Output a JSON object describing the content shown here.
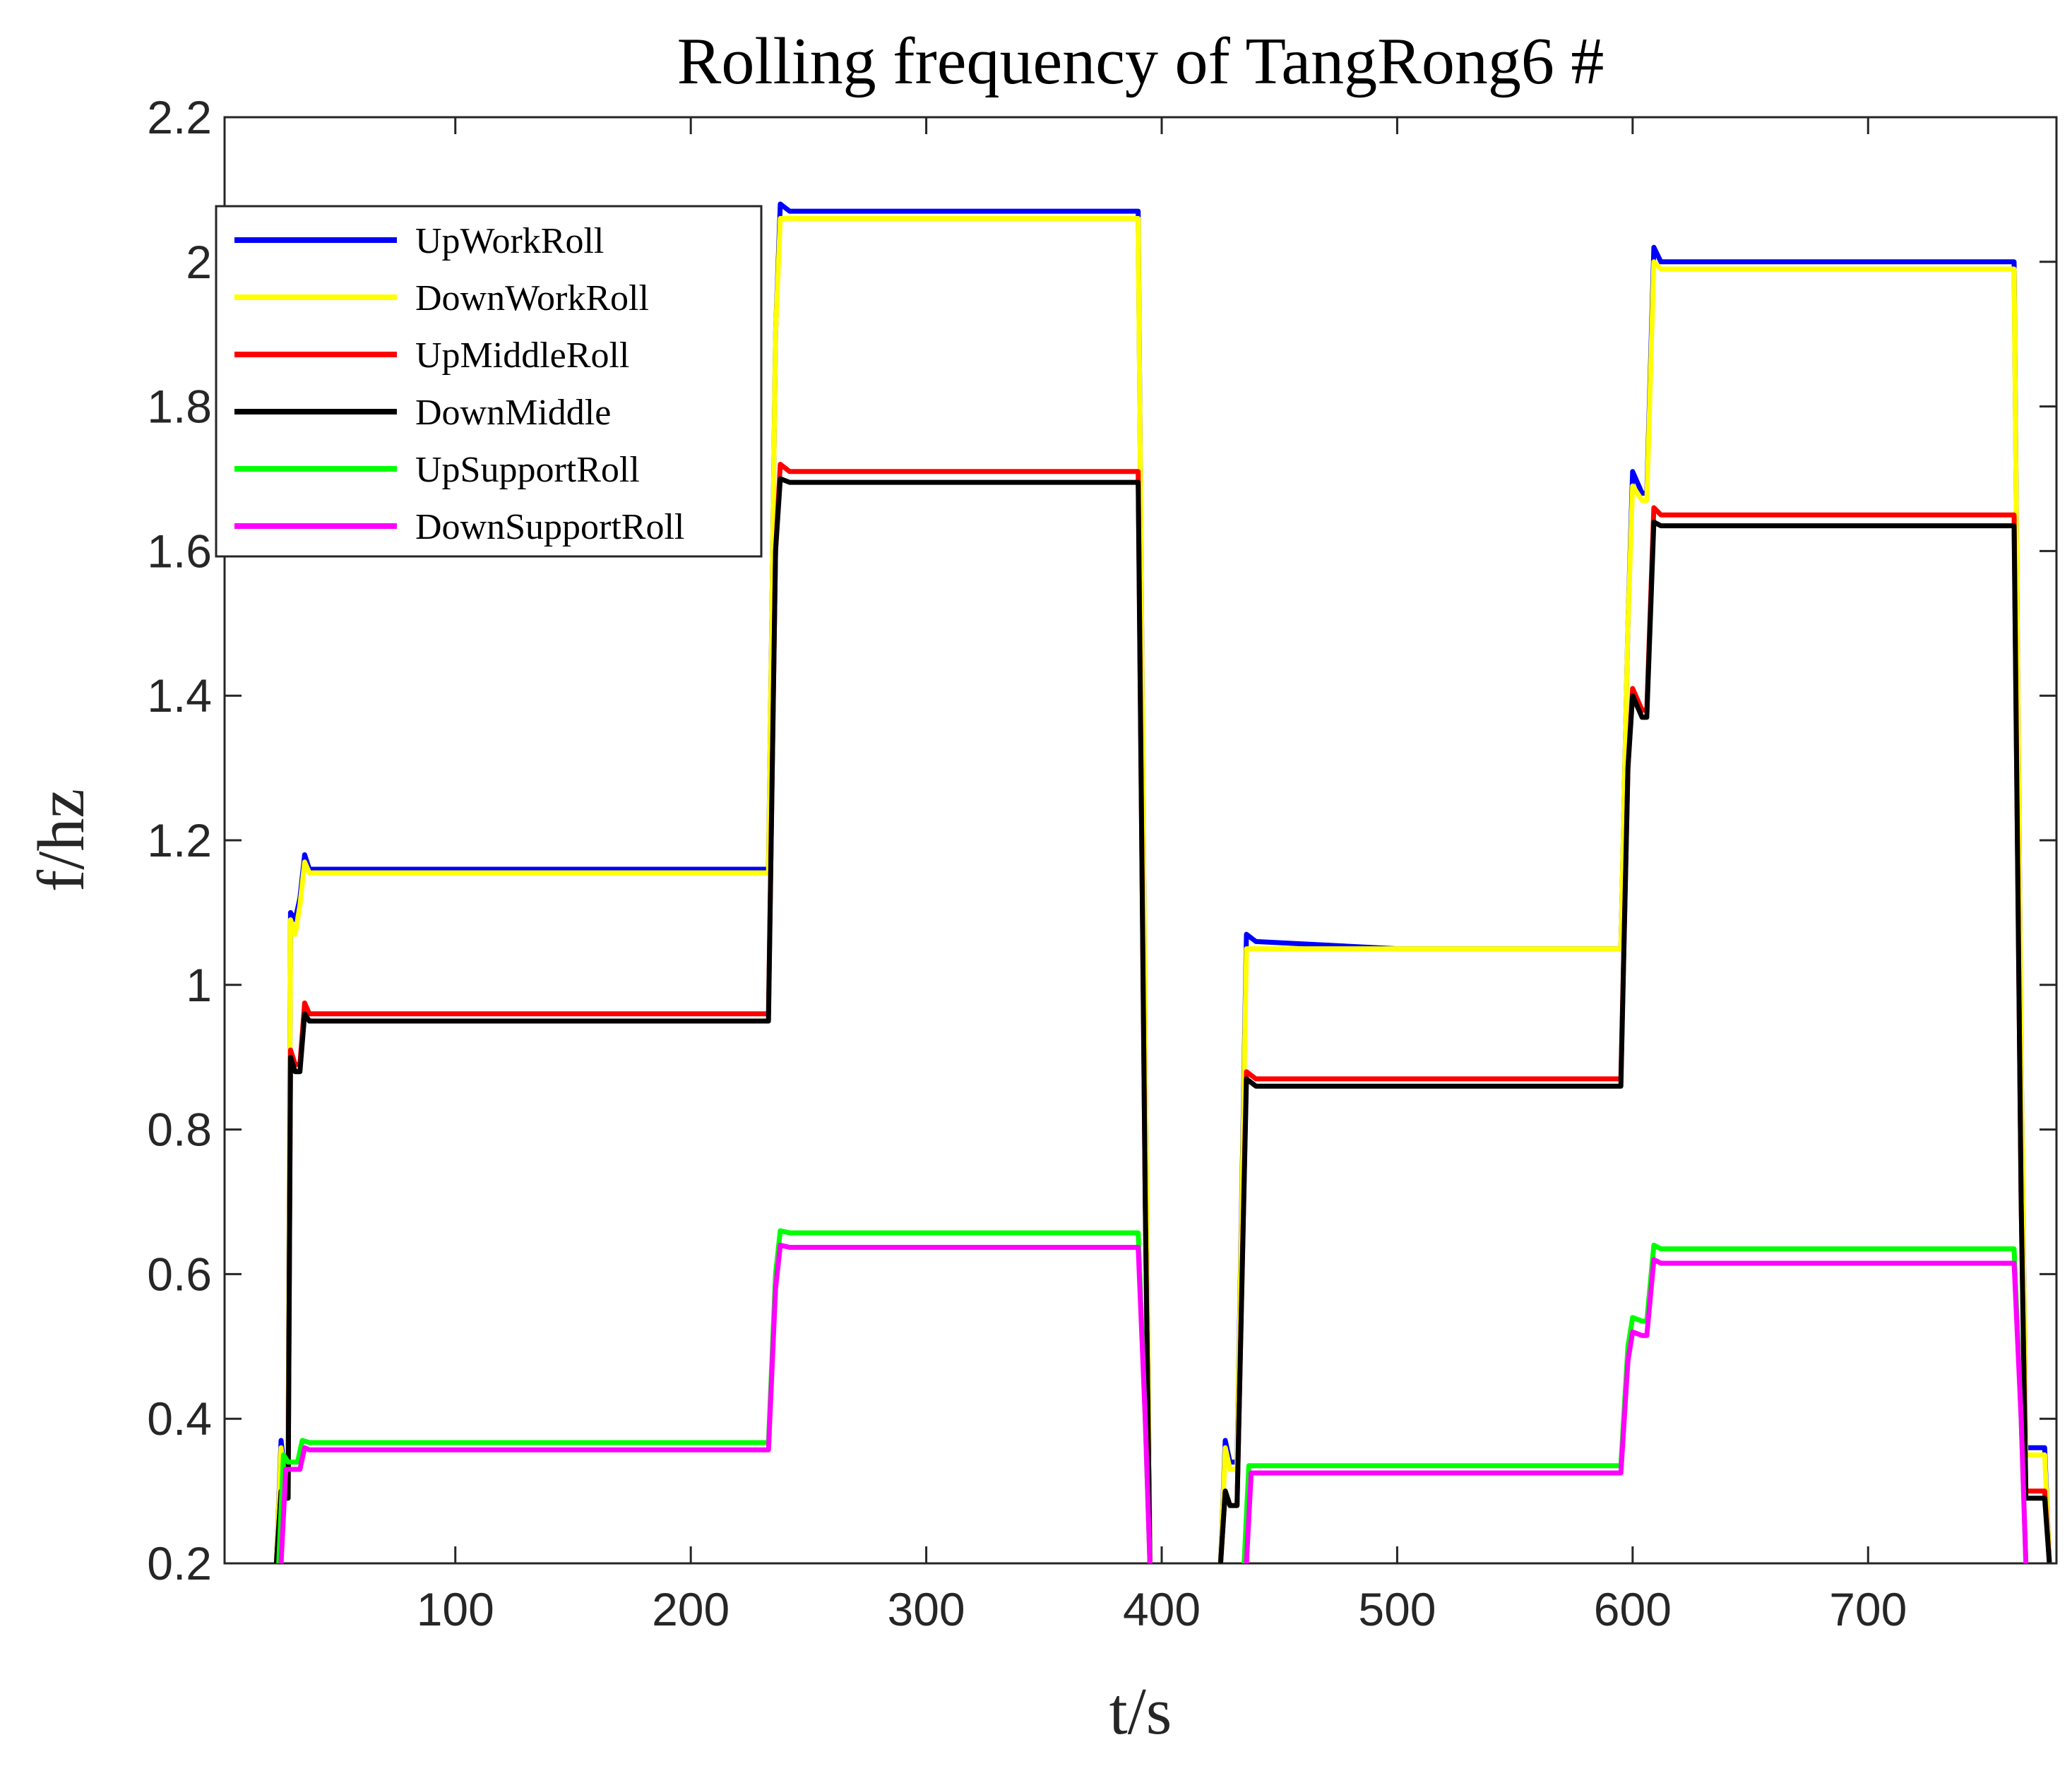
{
  "chart_data": {
    "type": "line",
    "title": "Rolling frequency of TangRong6 #",
    "xlabel": "t/s",
    "ylabel": "f/hz",
    "xlim": [
      2,
      780
    ],
    "ylim": [
      0.2,
      2.2
    ],
    "xticks": [
      100,
      200,
      300,
      400,
      500,
      600,
      700
    ],
    "xtick_labels": [
      "100",
      "200",
      "300",
      "400",
      "500",
      "600",
      "700"
    ],
    "yticks": [
      0.2,
      0.4,
      0.6,
      0.8,
      1.0,
      1.2,
      1.4,
      1.6,
      1.8,
      2.0,
      2.2
    ],
    "ytick_labels": [
      "0.2",
      "0.4",
      "0.6",
      "0.8",
      "1",
      "1.2",
      "1.4",
      "1.6",
      "1.8",
      "2",
      "2.2"
    ],
    "grid": false,
    "legend_position": "top-left",
    "series": [
      {
        "name": "UpWorkRoll",
        "color": "#0000ff",
        "points": [
          [
            24,
            0.2
          ],
          [
            26,
            0.37
          ],
          [
            27,
            0.34
          ],
          [
            28,
            0.34
          ],
          [
            29,
            0.34
          ],
          [
            30,
            1.1
          ],
          [
            32,
            1.09
          ],
          [
            34,
            1.12
          ],
          [
            36,
            1.18
          ],
          [
            38,
            1.16
          ],
          [
            100,
            1.16
          ],
          [
            200,
            1.16
          ],
          [
            233,
            1.16
          ],
          [
            236,
            1.9
          ],
          [
            238,
            2.08
          ],
          [
            242,
            2.07
          ],
          [
            300,
            2.07
          ],
          [
            390,
            2.07
          ],
          [
            393,
            0.9
          ],
          [
            395,
            0.2
          ],
          [
            null,
            null
          ],
          [
            425,
            0.2
          ],
          [
            427,
            0.37
          ],
          [
            429,
            0.34
          ],
          [
            432,
            0.34
          ],
          [
            436,
            1.07
          ],
          [
            440,
            1.06
          ],
          [
            500,
            1.05
          ],
          [
            595,
            1.05
          ],
          [
            598,
            1.5
          ],
          [
            600,
            1.71
          ],
          [
            604,
            1.68
          ],
          [
            606,
            1.68
          ],
          [
            609,
            2.02
          ],
          [
            612,
            2.0
          ],
          [
            700,
            2.0
          ],
          [
            762,
            2.0
          ],
          [
            765,
            0.9
          ],
          [
            767,
            0.36
          ],
          [
            772,
            0.36
          ],
          [
            775,
            0.36
          ],
          [
            777,
            0.2
          ]
        ]
      },
      {
        "name": "DownWorkRoll",
        "color": "#ffff00",
        "points": [
          [
            24,
            0.2
          ],
          [
            26,
            0.36
          ],
          [
            27,
            0.33
          ],
          [
            28,
            0.33
          ],
          [
            29,
            0.33
          ],
          [
            30,
            1.09
          ],
          [
            32,
            1.07
          ],
          [
            34,
            1.11
          ],
          [
            36,
            1.17
          ],
          [
            38,
            1.155
          ],
          [
            100,
            1.155
          ],
          [
            200,
            1.155
          ],
          [
            233,
            1.155
          ],
          [
            236,
            1.9
          ],
          [
            238,
            2.06
          ],
          [
            242,
            2.06
          ],
          [
            300,
            2.06
          ],
          [
            390,
            2.06
          ],
          [
            393,
            0.9
          ],
          [
            395,
            0.2
          ],
          [
            null,
            null
          ],
          [
            425,
            0.2
          ],
          [
            427,
            0.36
          ],
          [
            429,
            0.33
          ],
          [
            432,
            0.33
          ],
          [
            436,
            1.05
          ],
          [
            440,
            1.05
          ],
          [
            500,
            1.05
          ],
          [
            595,
            1.05
          ],
          [
            598,
            1.5
          ],
          [
            600,
            1.69
          ],
          [
            604,
            1.67
          ],
          [
            606,
            1.67
          ],
          [
            609,
            2.0
          ],
          [
            612,
            1.99
          ],
          [
            700,
            1.99
          ],
          [
            762,
            1.99
          ],
          [
            765,
            0.9
          ],
          [
            767,
            0.35
          ],
          [
            772,
            0.35
          ],
          [
            775,
            0.35
          ],
          [
            777,
            0.2
          ]
        ]
      },
      {
        "name": "UpMiddleRoll",
        "color": "#ff0000",
        "points": [
          [
            24,
            0.2
          ],
          [
            26,
            0.3
          ],
          [
            27,
            0.3
          ],
          [
            28,
            0.3
          ],
          [
            29,
            0.3
          ],
          [
            30,
            0.91
          ],
          [
            32,
            0.89
          ],
          [
            34,
            0.89
          ],
          [
            36,
            0.975
          ],
          [
            38,
            0.96
          ],
          [
            100,
            0.96
          ],
          [
            200,
            0.96
          ],
          [
            233,
            0.96
          ],
          [
            236,
            1.6
          ],
          [
            238,
            1.72
          ],
          [
            242,
            1.71
          ],
          [
            300,
            1.71
          ],
          [
            390,
            1.71
          ],
          [
            393,
            0.7
          ],
          [
            395,
            0.2
          ],
          [
            null,
            null
          ],
          [
            425,
            0.2
          ],
          [
            427,
            0.3
          ],
          [
            429,
            0.28
          ],
          [
            432,
            0.28
          ],
          [
            436,
            0.88
          ],
          [
            440,
            0.87
          ],
          [
            500,
            0.87
          ],
          [
            595,
            0.87
          ],
          [
            598,
            1.3
          ],
          [
            600,
            1.41
          ],
          [
            604,
            1.38
          ],
          [
            606,
            1.38
          ],
          [
            609,
            1.66
          ],
          [
            612,
            1.65
          ],
          [
            700,
            1.65
          ],
          [
            762,
            1.65
          ],
          [
            765,
            0.7
          ],
          [
            767,
            0.3
          ],
          [
            772,
            0.3
          ],
          [
            775,
            0.3
          ],
          [
            777,
            0.2
          ]
        ]
      },
      {
        "name": "DownMiddle",
        "color": "#000000",
        "points": [
          [
            24,
            0.2
          ],
          [
            26,
            0.3
          ],
          [
            27,
            0.29
          ],
          [
            28,
            0.29
          ],
          [
            29,
            0.29
          ],
          [
            30,
            0.9
          ],
          [
            32,
            0.88
          ],
          [
            34,
            0.88
          ],
          [
            36,
            0.96
          ],
          [
            38,
            0.95
          ],
          [
            100,
            0.95
          ],
          [
            200,
            0.95
          ],
          [
            233,
            0.95
          ],
          [
            236,
            1.6
          ],
          [
            238,
            1.7
          ],
          [
            242,
            1.695
          ],
          [
            300,
            1.695
          ],
          [
            390,
            1.695
          ],
          [
            393,
            0.7
          ],
          [
            395,
            0.2
          ],
          [
            null,
            null
          ],
          [
            425,
            0.2
          ],
          [
            427,
            0.3
          ],
          [
            429,
            0.28
          ],
          [
            432,
            0.28
          ],
          [
            436,
            0.87
          ],
          [
            440,
            0.86
          ],
          [
            500,
            0.86
          ],
          [
            595,
            0.86
          ],
          [
            598,
            1.3
          ],
          [
            600,
            1.4
          ],
          [
            604,
            1.37
          ],
          [
            606,
            1.37
          ],
          [
            609,
            1.64
          ],
          [
            612,
            1.635
          ],
          [
            700,
            1.635
          ],
          [
            762,
            1.635
          ],
          [
            765,
            0.7
          ],
          [
            767,
            0.29
          ],
          [
            772,
            0.29
          ],
          [
            775,
            0.29
          ],
          [
            777,
            0.2
          ]
        ]
      },
      {
        "name": "UpSupportRoll",
        "color": "#00ff00",
        "points": [
          [
            25,
            0.2
          ],
          [
            27,
            0.35
          ],
          [
            29,
            0.34
          ],
          [
            31,
            0.34
          ],
          [
            33,
            0.34
          ],
          [
            35,
            0.37
          ],
          [
            38,
            0.367
          ],
          [
            100,
            0.367
          ],
          [
            200,
            0.367
          ],
          [
            233,
            0.367
          ],
          [
            236,
            0.6
          ],
          [
            238,
            0.66
          ],
          [
            242,
            0.657
          ],
          [
            300,
            0.657
          ],
          [
            390,
            0.657
          ],
          [
            393,
            0.4
          ],
          [
            395,
            0.2
          ],
          [
            null,
            null
          ],
          [
            435,
            0.2
          ],
          [
            437,
            0.335
          ],
          [
            500,
            0.335
          ],
          [
            595,
            0.335
          ],
          [
            598,
            0.5
          ],
          [
            600,
            0.54
          ],
          [
            604,
            0.535
          ],
          [
            606,
            0.535
          ],
          [
            609,
            0.64
          ],
          [
            612,
            0.635
          ],
          [
            700,
            0.635
          ],
          [
            762,
            0.635
          ],
          [
            765,
            0.4
          ],
          [
            767,
            0.2
          ]
        ]
      },
      {
        "name": "DownSupportRoll",
        "color": "#ff00ff",
        "points": [
          [
            26,
            0.2
          ],
          [
            28,
            0.33
          ],
          [
            30,
            0.33
          ],
          [
            32,
            0.33
          ],
          [
            34,
            0.33
          ],
          [
            36,
            0.36
          ],
          [
            38,
            0.357
          ],
          [
            100,
            0.357
          ],
          [
            200,
            0.357
          ],
          [
            233,
            0.357
          ],
          [
            236,
            0.58
          ],
          [
            238,
            0.64
          ],
          [
            242,
            0.637
          ],
          [
            300,
            0.637
          ],
          [
            390,
            0.637
          ],
          [
            393,
            0.4
          ],
          [
            395,
            0.2
          ],
          [
            null,
            null
          ],
          [
            436,
            0.2
          ],
          [
            438,
            0.325
          ],
          [
            500,
            0.325
          ],
          [
            595,
            0.325
          ],
          [
            598,
            0.48
          ],
          [
            600,
            0.52
          ],
          [
            604,
            0.515
          ],
          [
            606,
            0.515
          ],
          [
            609,
            0.62
          ],
          [
            612,
            0.615
          ],
          [
            700,
            0.615
          ],
          [
            762,
            0.615
          ],
          [
            765,
            0.4
          ],
          [
            767,
            0.2
          ]
        ]
      }
    ]
  }
}
